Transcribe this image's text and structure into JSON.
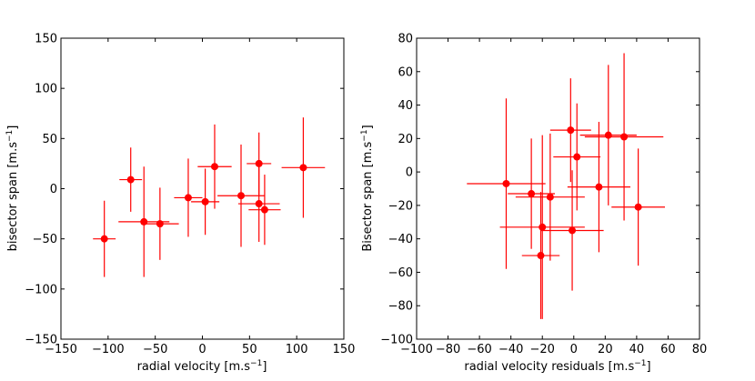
{
  "chart_data": [
    {
      "type": "scatter",
      "error_bars": true,
      "color": "#ff0000",
      "xlabel": "radial velocity [m.s",
      "xlabel_sup": "−1",
      "xlabel_end": "]",
      "ylabel": "bisector span [m.s",
      "ylabel_sup": "−1",
      "ylabel_end": "]",
      "xlim": [
        -150,
        150
      ],
      "ylim": [
        -150,
        150
      ],
      "xticks": [
        -150,
        -100,
        -50,
        0,
        50,
        100,
        150
      ],
      "yticks": [
        -150,
        -100,
        -50,
        0,
        50,
        100,
        150
      ],
      "xtick_labels": [
        "−150",
        "−100",
        "−50",
        "0",
        "50",
        "100",
        "150"
      ],
      "ytick_labels": [
        "−150",
        "−100",
        "−50",
        "0",
        "50",
        "100",
        "150"
      ],
      "points": [
        {
          "x": -104,
          "y": -50,
          "xerr": 12,
          "yerr": 38
        },
        {
          "x": -76,
          "y": 9,
          "xerr": 12,
          "yerr": 32
        },
        {
          "x": -62,
          "y": -33,
          "xerr": 27,
          "yerr": 55
        },
        {
          "x": -45,
          "y": -35,
          "xerr": 20,
          "yerr": 36
        },
        {
          "x": -15,
          "y": -9,
          "xerr": 15,
          "yerr": 39
        },
        {
          "x": 3,
          "y": -13,
          "xerr": 15,
          "yerr": 33
        },
        {
          "x": 13,
          "y": 22,
          "xerr": 18,
          "yerr": 42
        },
        {
          "x": 41,
          "y": -7,
          "xerr": 25,
          "yerr": 51
        },
        {
          "x": 60,
          "y": 25,
          "xerr": 13,
          "yerr": 31
        },
        {
          "x": 60,
          "y": -15,
          "xerr": 22,
          "yerr": 38
        },
        {
          "x": 66,
          "y": -21,
          "xerr": 17,
          "yerr": 35
        },
        {
          "x": 107,
          "y": 21,
          "xerr": 23,
          "yerr": 50
        }
      ]
    },
    {
      "type": "scatter",
      "error_bars": true,
      "color": "#ff0000",
      "xlabel": "radial velocity residuals [m.s",
      "xlabel_sup": "−1",
      "xlabel_end": "]",
      "ylabel": "Bisector span [m.s",
      "ylabel_sup": "−1",
      "ylabel_end": "]",
      "xlim": [
        -100,
        80
      ],
      "ylim": [
        -100,
        80
      ],
      "xticks": [
        -100,
        -80,
        -60,
        -40,
        -20,
        0,
        20,
        40,
        60,
        80
      ],
      "yticks": [
        -100,
        -80,
        -60,
        -40,
        -20,
        0,
        20,
        40,
        60,
        80
      ],
      "xtick_labels": [
        "−100",
        "−80",
        "−60",
        "−40",
        "−20",
        "0",
        "20",
        "40",
        "60",
        "80"
      ],
      "ytick_labels": [
        "−100",
        "−80",
        "−60",
        "−40",
        "−20",
        "0",
        "20",
        "40",
        "60",
        "80"
      ],
      "points": [
        {
          "x": -43,
          "y": -7,
          "xerr": 25,
          "yerr": 51
        },
        {
          "x": -27,
          "y": -13,
          "xerr": 15,
          "yerr": 33
        },
        {
          "x": -20,
          "y": -33,
          "xerr": 27,
          "yerr": 55
        },
        {
          "x": -15,
          "y": -15,
          "xerr": 22,
          "yerr": 38
        },
        {
          "x": -21,
          "y": -50,
          "xerr": 12,
          "yerr": 38
        },
        {
          "x": -1,
          "y": -35,
          "xerr": 20,
          "yerr": 36
        },
        {
          "x": -2,
          "y": 25,
          "xerr": 13,
          "yerr": 31
        },
        {
          "x": 2,
          "y": 9,
          "xerr": 15,
          "yerr": 32
        },
        {
          "x": 16,
          "y": -9,
          "xerr": 20,
          "yerr": 39
        },
        {
          "x": 22,
          "y": 22,
          "xerr": 18,
          "yerr": 42
        },
        {
          "x": 32,
          "y": 21,
          "xerr": 25,
          "yerr": 50
        },
        {
          "x": 41,
          "y": -21,
          "xerr": 17,
          "yerr": 35
        }
      ]
    }
  ]
}
